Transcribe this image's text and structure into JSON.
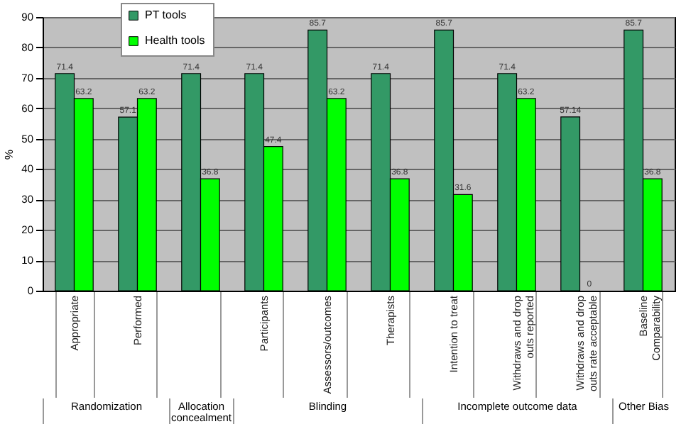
{
  "chart_data": {
    "type": "bar",
    "ylabel": "%",
    "categories": [
      "Appropriate",
      "Performed",
      null,
      "Participants",
      "Assessors/outcomes",
      "Therapists",
      "Intention to treat",
      "Withdraws and drop outs reported",
      "Withdraws and drop outs rate acceptable",
      "Baseline Comparability"
    ],
    "series": [
      {
        "name": "PT tools",
        "color": "#339966",
        "values": [
          71.4,
          57.1,
          71.4,
          71.4,
          85.7,
          71.4,
          85.7,
          71.4,
          57.14,
          85.7
        ]
      },
      {
        "name": "Health tools",
        "color": "#00ff00",
        "values": [
          63.2,
          63.2,
          36.8,
          47.4,
          63.2,
          36.8,
          31.6,
          63.2,
          0,
          36.8
        ]
      }
    ],
    "ylim": [
      0,
      90
    ],
    "yticks": [
      0,
      10,
      20,
      30,
      40,
      50,
      60,
      70,
      80,
      90
    ],
    "grid": "y",
    "legend": "top left",
    "data_labels": true,
    "annotations": [
      "Randomization",
      "Allocation concealment",
      "Blinding",
      "Incomplete outcome data",
      "Other Bias"
    ]
  }
}
